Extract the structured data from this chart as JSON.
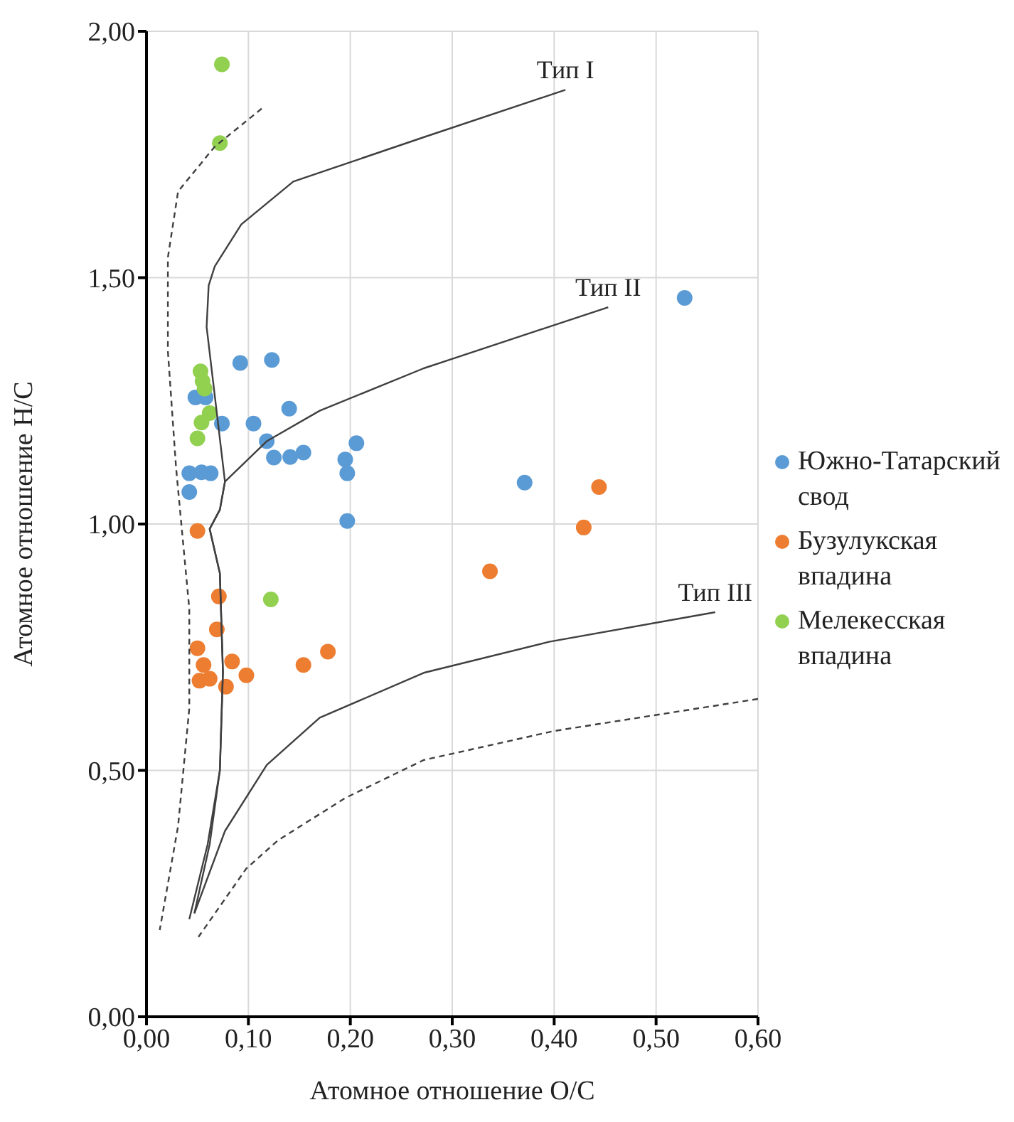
{
  "chart_data": {
    "type": "scatter",
    "xlabel": "Атомное отношение O/C",
    "ylabel": "Атомное отношение H/C",
    "xlim": [
      0,
      0.6
    ],
    "xticks": [
      {
        "value": 0,
        "label": "0,00"
      },
      {
        "value": 0.1,
        "label": "0,10"
      },
      {
        "value": 0.2,
        "label": "0,20"
      },
      {
        "value": 0.3,
        "label": "0,30"
      },
      {
        "value": 0.4,
        "label": "0,40"
      },
      {
        "value": 0.5,
        "label": "0,50"
      },
      {
        "value": 0.6,
        "label": "0,60"
      }
    ],
    "ylim": [
      0,
      2
    ],
    "yticks": [
      {
        "value": 0,
        "label": "0,00"
      },
      {
        "value": 0.5,
        "label": "0,50"
      },
      {
        "value": 1,
        "label": "1,00"
      },
      {
        "value": 1.5,
        "label": "1,50"
      },
      {
        "value": 2,
        "label": "2,00"
      }
    ],
    "grid": true,
    "legend": "right",
    "marker": "circle",
    "annotations": [
      {
        "text": "Тип I",
        "x": 0.411,
        "y": 1.881
      },
      {
        "text": "Тип II",
        "x": 0.453,
        "y": 1.44
      },
      {
        "text": "Тип III",
        "x": 0.558,
        "y": 0.821
      }
    ],
    "series": [
      {
        "name": "Южно-Татарский свод",
        "color": "#5b9bd5",
        "x": [
          0.092,
          0.123,
          0.048,
          0.058,
          0.14,
          0.074,
          0.105,
          0.118,
          0.206,
          0.125,
          0.141,
          0.154,
          0.195,
          0.197,
          0.042,
          0.054,
          0.063,
          0.042,
          0.197,
          0.371,
          0.528
        ],
        "values": [
          1.327,
          1.333,
          1.257,
          1.257,
          1.234,
          1.204,
          1.204,
          1.168,
          1.164,
          1.135,
          1.136,
          1.145,
          1.131,
          1.103,
          1.103,
          1.105,
          1.103,
          1.065,
          1.006,
          1.084,
          1.459
        ]
      },
      {
        "name": "Бузулукская впадина",
        "color": "#ed7d31",
        "x": [
          0.05,
          0.071,
          0.069,
          0.05,
          0.056,
          0.084,
          0.098,
          0.052,
          0.062,
          0.078,
          0.154,
          0.178,
          0.444,
          0.429,
          0.337
        ],
        "values": [
          0.986,
          0.853,
          0.786,
          0.748,
          0.714,
          0.721,
          0.693,
          0.682,
          0.686,
          0.67,
          0.714,
          0.741,
          1.075,
          0.993,
          0.904
        ]
      },
      {
        "name": "Мелекесская впадина",
        "color": "#92d050",
        "x": [
          0.074,
          0.072,
          0.053,
          0.055,
          0.057,
          0.054,
          0.062,
          0.05,
          0.122
        ],
        "values": [
          1.933,
          1.773,
          1.31,
          1.29,
          1.275,
          1.206,
          1.225,
          1.174,
          0.847
        ]
      },
      {
        "type": "line",
        "color": "#404040",
        "line_style": "solid",
        "marker": "none",
        "x": [
          0.411,
          0.272,
          0.144,
          0.093,
          0.067,
          0.061,
          0.059,
          0.077,
          0.072,
          0.062,
          0.072,
          0.075,
          0.072,
          0.06,
          0.042
        ],
        "values": [
          1.881,
          1.785,
          1.695,
          1.608,
          1.523,
          1.484,
          1.4,
          1.086,
          1.029,
          0.99,
          0.9,
          0.7,
          0.5,
          0.35,
          0.198
        ]
      },
      {
        "type": "line",
        "color": "#404040",
        "line_style": "solid",
        "marker": "none",
        "x": [
          0.453,
          0.272,
          0.17,
          0.118,
          0.077,
          0.072,
          0.062,
          0.072,
          0.075,
          0.072,
          0.062,
          0.047
        ],
        "values": [
          1.44,
          1.316,
          1.23,
          1.168,
          1.086,
          1.029,
          0.99,
          0.9,
          0.7,
          0.5,
          0.35,
          0.21
        ]
      },
      {
        "type": "line",
        "color": "#404040",
        "line_style": "solid",
        "marker": "none",
        "x": [
          0.558,
          0.395,
          0.272,
          0.17,
          0.118,
          0.077,
          0.047
        ],
        "values": [
          0.821,
          0.761,
          0.698,
          0.607,
          0.511,
          0.377,
          0.21
        ]
      },
      {
        "type": "line",
        "color": "#404040",
        "line_style": "dashed",
        "marker": "none",
        "x": [
          0.113,
          0.067,
          0.031,
          0.021,
          0.021,
          0.029,
          0.042,
          0.042,
          0.031,
          0.013
        ],
        "values": [
          1.843,
          1.766,
          1.675,
          1.541,
          1.351,
          1.115,
          0.828,
          0.626,
          0.387,
          0.176
        ]
      },
      {
        "type": "line",
        "color": "#404040",
        "line_style": "dashed",
        "marker": "none",
        "x": [
          0.6,
          0.4,
          0.272,
          0.195,
          0.129,
          0.098,
          0.051
        ],
        "values": [
          0.645,
          0.58,
          0.521,
          0.444,
          0.358,
          0.301,
          0.162
        ]
      }
    ]
  }
}
